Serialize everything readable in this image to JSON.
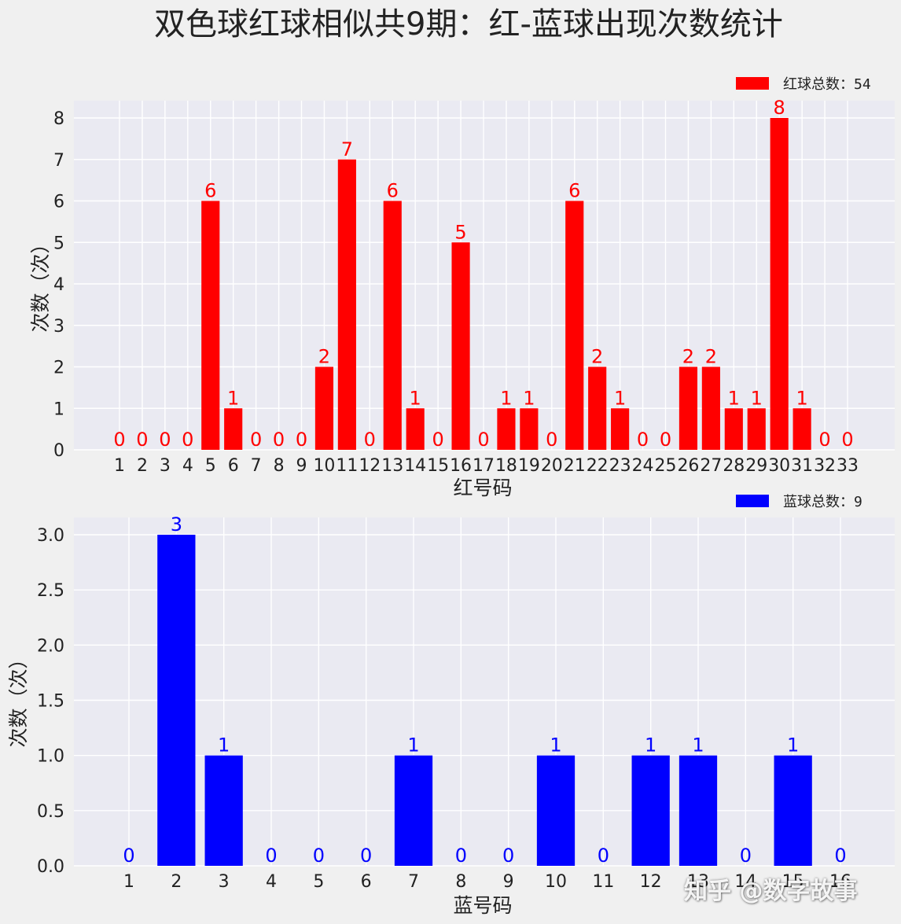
{
  "title": "双色球红球相似共9期：红-蓝球出现次数统计",
  "watermark": "知乎 @数字故事",
  "colors": {
    "background": "#f0f0f0",
    "plot_bg": "#eaeaf2",
    "grid": "#ffffff",
    "red": "#ff0000",
    "blue": "#0000ff"
  },
  "chart_data": [
    {
      "type": "bar",
      "xlabel": "红号码",
      "ylabel": "次数（次）",
      "legend": "红球总数：54",
      "legend_position": "top-right",
      "categories": [
        "1",
        "2",
        "3",
        "4",
        "5",
        "6",
        "7",
        "8",
        "9",
        "10",
        "11",
        "12",
        "13",
        "14",
        "15",
        "16",
        "17",
        "18",
        "19",
        "20",
        "21",
        "22",
        "23",
        "24",
        "25",
        "26",
        "27",
        "28",
        "29",
        "30",
        "31",
        "32",
        "33"
      ],
      "values": [
        0,
        0,
        0,
        0,
        6,
        1,
        0,
        0,
        0,
        2,
        7,
        0,
        6,
        1,
        0,
        5,
        0,
        1,
        1,
        0,
        6,
        2,
        1,
        0,
        0,
        2,
        2,
        1,
        1,
        8,
        1,
        0,
        0
      ],
      "yticks": [
        "0",
        "1",
        "2",
        "3",
        "4",
        "5",
        "6",
        "7",
        "8"
      ],
      "ylim": [
        0,
        8.4
      ],
      "grid": true,
      "color": "#ff0000"
    },
    {
      "type": "bar",
      "xlabel": "蓝号码",
      "ylabel": "次数（次）",
      "legend": "蓝球总数：9",
      "legend_position": "top-right",
      "categories": [
        "1",
        "2",
        "3",
        "4",
        "5",
        "6",
        "7",
        "8",
        "9",
        "10",
        "11",
        "12",
        "13",
        "14",
        "15",
        "16"
      ],
      "values": [
        0,
        3,
        1,
        0,
        0,
        0,
        1,
        0,
        0,
        1,
        0,
        1,
        1,
        0,
        1,
        0
      ],
      "yticks": [
        "0.0",
        "0.5",
        "1.0",
        "1.5",
        "2.0",
        "2.5",
        "3.0"
      ],
      "ylim": [
        0,
        3.15
      ],
      "grid": true,
      "color": "#0000ff"
    }
  ]
}
